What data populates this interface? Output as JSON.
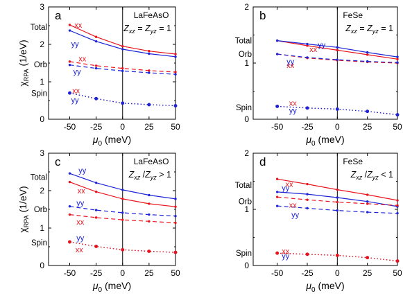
{
  "chart_data": [
    {
      "type": "line",
      "panel_letter": "a",
      "material": "LaFeAsO",
      "condition": {
        "z1": "Z",
        "s1": "xz",
        "op": " = ",
        "z2": "Z",
        "s2": "yz",
        "tail": " = 1"
      },
      "xlabel": {
        "sym": "μ",
        "sub": "0",
        "unit": " (meV)"
      },
      "ylabel": {
        "sym": "χ",
        "sub": "RPA",
        "unit": " (1/eV)"
      },
      "x_ticks": [
        "-50",
        "-25",
        "0",
        "25",
        "50"
      ],
      "y_ticks": [
        "0",
        "1",
        "2",
        "3"
      ],
      "xlim": [
        -70,
        50
      ],
      "ylim": [
        0,
        3
      ],
      "x": [
        -50,
        -25,
        0,
        25,
        50
      ],
      "group_labels": [
        {
          "text": "Total",
          "x": -70,
          "y": 2.46
        },
        {
          "text": "Orb",
          "x": -70,
          "y": 1.46
        },
        {
          "text": "Spin",
          "x": -70,
          "y": 0.69
        }
      ],
      "series": [
        {
          "group": "Total",
          "orbital": "xx",
          "color": "#e8141c",
          "style": "solid",
          "values": [
            2.52,
            2.2,
            1.95,
            1.82,
            1.74
          ]
        },
        {
          "group": "Total",
          "orbital": "yy",
          "color": "#1c24d6",
          "style": "solid",
          "values": [
            2.37,
            2.08,
            1.87,
            1.75,
            1.67
          ]
        },
        {
          "group": "Orb",
          "orbital": "xx",
          "color": "#e8141c",
          "style": "dashed",
          "values": [
            1.54,
            1.43,
            1.36,
            1.3,
            1.26
          ]
        },
        {
          "group": "Orb",
          "orbital": "yy",
          "color": "#1c24d6",
          "style": "dashed",
          "values": [
            1.45,
            1.36,
            1.29,
            1.24,
            1.2
          ]
        },
        {
          "group": "Spin",
          "orbital": "xx",
          "color": "#7a1a6e",
          "style": "dotted",
          "values": [
            0.7,
            0.55,
            0.43,
            0.39,
            0.36
          ]
        },
        {
          "group": "Spin",
          "orbital": "yy",
          "color": "#1c24d6",
          "style": "dotted",
          "values": [
            0.7,
            0.55,
            0.43,
            0.39,
            0.36
          ]
        }
      ],
      "curve_labels": [
        {
          "text": "xx",
          "color": "#e8141c",
          "x": -42,
          "y": 2.52
        },
        {
          "text": "yy",
          "color": "#1c24d6",
          "x": -45,
          "y": 2.02
        },
        {
          "text": "xx",
          "color": "#e8141c",
          "x": -38,
          "y": 1.62
        },
        {
          "text": "yy",
          "color": "#1c24d6",
          "x": -43,
          "y": 1.28
        },
        {
          "text": "xx",
          "color": "#e8141c",
          "x": -44,
          "y": 0.77
        },
        {
          "text": "yy",
          "color": "#1c24d6",
          "x": -45,
          "y": 0.52
        }
      ]
    },
    {
      "type": "line",
      "panel_letter": "b",
      "material": "FeSe",
      "condition": {
        "z1": "Z",
        "s1": "xz",
        "op": " = ",
        "z2": "Z",
        "s2": "yz",
        "tail": " = 1"
      },
      "xlabel": {
        "sym": "μ",
        "sub": "0",
        "unit": " (meV)"
      },
      "ylabel": {
        "sym": "",
        "sub": "",
        "unit": ""
      },
      "x_ticks": [
        "-50",
        "-25",
        "0",
        "25",
        "50"
      ],
      "y_ticks": [
        "0",
        "1",
        "2"
      ],
      "xlim": [
        -70,
        50
      ],
      "ylim": [
        0,
        2
      ],
      "x": [
        -50,
        -25,
        0,
        25,
        50
      ],
      "group_labels": [
        {
          "text": "Total",
          "x": -70,
          "y": 1.4
        },
        {
          "text": "Orb",
          "x": -70,
          "y": 1.16
        },
        {
          "text": "Spin",
          "x": -70,
          "y": 0.21
        }
      ],
      "series": [
        {
          "group": "Total",
          "orbital": "xx",
          "color": "#e8141c",
          "style": "solid",
          "values": [
            1.4,
            1.31,
            1.23,
            1.15,
            1.07
          ]
        },
        {
          "group": "Total",
          "orbital": "yy",
          "color": "#1c24d6",
          "style": "solid",
          "values": [
            1.4,
            1.34,
            1.28,
            1.19,
            1.11
          ]
        },
        {
          "group": "Orb",
          "orbital": "xx",
          "color": "#e8141c",
          "style": "dashed",
          "values": [
            1.16,
            1.09,
            1.05,
            1.02,
            1.0
          ]
        },
        {
          "group": "Orb",
          "orbital": "yy",
          "color": "#1c24d6",
          "style": "dashed",
          "values": [
            1.16,
            1.1,
            1.06,
            1.03,
            1.01
          ]
        },
        {
          "group": "Spin",
          "orbital": "xx",
          "color": "#7a1a6e",
          "style": "dotted",
          "values": [
            0.23,
            0.2,
            0.18,
            0.14,
            0.08
          ]
        },
        {
          "group": "Spin",
          "orbital": "yy",
          "color": "#1c24d6",
          "style": "dotted",
          "values": [
            0.23,
            0.2,
            0.18,
            0.14,
            0.08
          ]
        }
      ],
      "curve_labels": [
        {
          "text": "yy",
          "color": "#1c24d6",
          "x": -13,
          "y": 1.33
        },
        {
          "text": "xx",
          "color": "#e8141c",
          "x": -20,
          "y": 1.25
        },
        {
          "text": "yy",
          "color": "#1c24d6",
          "x": -39,
          "y": 1.03
        },
        {
          "text": "xx",
          "color": "#e8141c",
          "x": -39,
          "y": 0.96
        },
        {
          "text": "xx",
          "color": "#e8141c",
          "x": -37,
          "y": 0.29
        },
        {
          "text": "yy",
          "color": "#1c24d6",
          "x": -37,
          "y": 0.16
        }
      ]
    },
    {
      "type": "line",
      "panel_letter": "c",
      "material": "LaFeAsO",
      "condition": {
        "z1": "Z",
        "s1": "xz",
        "op": " /",
        "z2": "Z",
        "s2": "yz",
        "tail": " > 1"
      },
      "xlabel": {
        "sym": "μ",
        "sub": "0",
        "unit": " (meV)"
      },
      "ylabel": {
        "sym": "χ",
        "sub": "RPA",
        "unit": " (1/eV)"
      },
      "x_ticks": [
        "-50",
        "-25",
        "0",
        "25",
        "50"
      ],
      "y_ticks": [
        "0",
        "1",
        "2",
        "3"
      ],
      "xlim": [
        -70,
        50
      ],
      "ylim": [
        0,
        3
      ],
      "x": [
        -50,
        -25,
        0,
        25,
        50
      ],
      "group_labels": [
        {
          "text": "Total",
          "x": -70,
          "y": 2.36
        },
        {
          "text": "Orb",
          "x": -70,
          "y": 1.5
        },
        {
          "text": "Spin",
          "x": -70,
          "y": 0.61
        }
      ],
      "series": [
        {
          "group": "Total",
          "orbital": "yy",
          "color": "#1c24d6",
          "style": "solid",
          "values": [
            2.46,
            2.21,
            2.02,
            1.88,
            1.78
          ]
        },
        {
          "group": "Total",
          "orbital": "xx",
          "color": "#e8141c",
          "style": "solid",
          "values": [
            2.23,
            1.97,
            1.78,
            1.65,
            1.57
          ]
        },
        {
          "group": "Orb",
          "orbital": "yy",
          "color": "#1c24d6",
          "style": "dashed",
          "values": [
            1.58,
            1.48,
            1.41,
            1.36,
            1.32
          ]
        },
        {
          "group": "Orb",
          "orbital": "xx",
          "color": "#e8141c",
          "style": "dashed",
          "values": [
            1.36,
            1.28,
            1.22,
            1.18,
            1.14
          ]
        },
        {
          "group": "Spin",
          "orbital": "yy",
          "color": "#7a1a6e",
          "style": "dotted",
          "values": [
            0.63,
            0.51,
            0.42,
            0.38,
            0.35
          ]
        },
        {
          "group": "Spin",
          "orbital": "xx",
          "color": "#e8141c",
          "style": "dotted",
          "values": [
            0.63,
            0.51,
            0.42,
            0.38,
            0.35
          ]
        }
      ],
      "curve_labels": [
        {
          "text": "yy",
          "color": "#1c24d6",
          "x": -38,
          "y": 2.55
        },
        {
          "text": "xx",
          "color": "#e8141c",
          "x": -39,
          "y": 2.0
        },
        {
          "text": "yy",
          "color": "#1c24d6",
          "x": -40,
          "y": 1.68
        },
        {
          "text": "xx",
          "color": "#e8141c",
          "x": -40,
          "y": 1.17
        },
        {
          "text": "yy",
          "color": "#1c24d6",
          "x": -40,
          "y": 0.74
        },
        {
          "text": "xx",
          "color": "#e8141c",
          "x": -41,
          "y": 0.43
        }
      ]
    },
    {
      "type": "line",
      "panel_letter": "d",
      "material": "FeSe",
      "condition": {
        "z1": "Z",
        "s1": "xz",
        "op": " /",
        "z2": "Z",
        "s2": "yz",
        "tail": " < 1"
      },
      "xlabel": {
        "sym": "μ",
        "sub": "0",
        "unit": " (meV)"
      },
      "ylabel": {
        "sym": "",
        "sub": "",
        "unit": ""
      },
      "x_ticks": [
        "-50",
        "-25",
        "0",
        "25",
        "50"
      ],
      "y_ticks": [
        "0",
        "1",
        "2"
      ],
      "xlim": [
        -70,
        50
      ],
      "ylim": [
        0,
        2
      ],
      "x": [
        -50,
        -25,
        0,
        25,
        50
      ],
      "group_labels": [
        {
          "text": "Total",
          "x": -70,
          "y": 1.43
        },
        {
          "text": "Orb",
          "x": -70,
          "y": 1.14
        },
        {
          "text": "Spin",
          "x": -70,
          "y": 0.22
        }
      ],
      "series": [
        {
          "group": "Total",
          "orbital": "xx",
          "color": "#e8141c",
          "style": "solid",
          "values": [
            1.54,
            1.45,
            1.35,
            1.26,
            1.16
          ]
        },
        {
          "group": "Total",
          "orbital": "yy",
          "color": "#1c24d6",
          "style": "solid",
          "values": [
            1.31,
            1.27,
            1.21,
            1.14,
            1.05
          ]
        },
        {
          "group": "Orb",
          "orbital": "xx",
          "color": "#e8141c",
          "style": "dashed",
          "values": [
            1.22,
            1.17,
            1.13,
            1.1,
            1.07
          ]
        },
        {
          "group": "Orb",
          "orbital": "yy",
          "color": "#1c24d6",
          "style": "dashed",
          "values": [
            1.06,
            1.02,
            0.98,
            0.95,
            0.93
          ]
        },
        {
          "group": "Spin",
          "orbital": "xx",
          "color": "#7a1a6e",
          "style": "dotted",
          "values": [
            0.22,
            0.2,
            0.18,
            0.14,
            0.08
          ]
        },
        {
          "group": "Spin",
          "orbital": "yy",
          "color": "#e8141c",
          "style": "dotted",
          "values": [
            0.22,
            0.2,
            0.18,
            0.14,
            0.08
          ]
        }
      ],
      "curve_labels": [
        {
          "text": "xx",
          "color": "#e8141c",
          "x": -40,
          "y": 1.45
        },
        {
          "text": "yy",
          "color": "#1c24d6",
          "x": -43,
          "y": 1.38
        },
        {
          "text": "xx",
          "color": "#e8141c",
          "x": -37,
          "y": 1.08
        },
        {
          "text": "yy",
          "color": "#1c24d6",
          "x": -35,
          "y": 0.91
        },
        {
          "text": "xx",
          "color": "#e8141c",
          "x": -43,
          "y": 0.26
        },
        {
          "text": "yy",
          "color": "#1c24d6",
          "x": -43,
          "y": 0.17
        }
      ]
    }
  ]
}
